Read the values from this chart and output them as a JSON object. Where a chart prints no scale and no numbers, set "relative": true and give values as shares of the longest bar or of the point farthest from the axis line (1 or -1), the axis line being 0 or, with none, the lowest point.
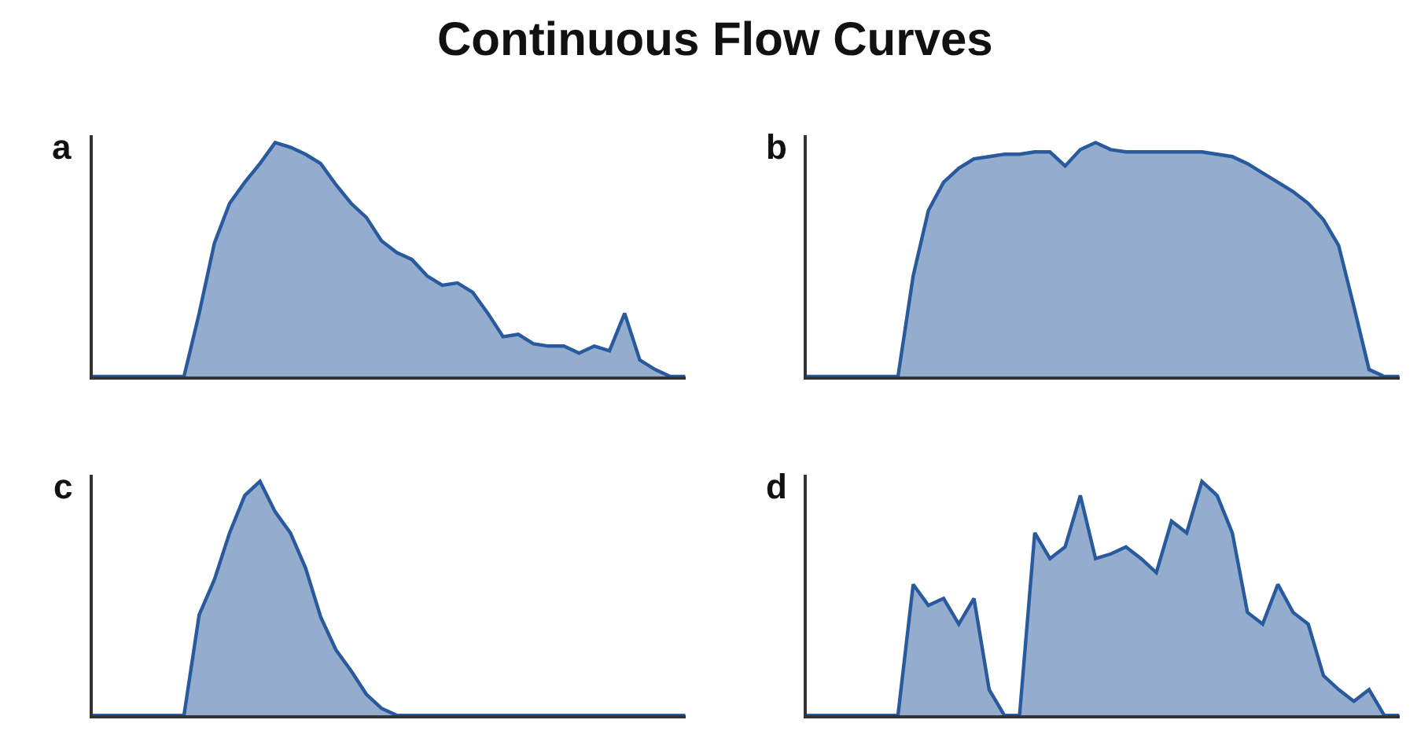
{
  "chart_data": [
    {
      "type": "other",
      "title": "Continuous Flow Curves"
    },
    {
      "type": "area",
      "title": "a",
      "relative": true,
      "categories": [
        null,
        null,
        null,
        null,
        null,
        null,
        null,
        null,
        null,
        null,
        null,
        null,
        null,
        null,
        null,
        null,
        null,
        null,
        null,
        null,
        null,
        null,
        null,
        null,
        null,
        null,
        null,
        null,
        null,
        null,
        null,
        null,
        null,
        null,
        null,
        null,
        null,
        null,
        null,
        null
      ],
      "series": [
        {
          "color": "#2a5a9e",
          "values": [
            0,
            0,
            0,
            0,
            0,
            0,
            0,
            0.27,
            0.57,
            0.74,
            0.83,
            0.91,
            1,
            0.98,
            0.95,
            0.91,
            0.82,
            0.74,
            0.68,
            0.58,
            0.53,
            0.5,
            0.43,
            0.39,
            0.4,
            0.36,
            0.27,
            0.17,
            0.18,
            0.14,
            0.13,
            0.13,
            0.1,
            0.13,
            0.11,
            0.27,
            0.07,
            0.03,
            0,
            0
          ]
        }
      ]
    },
    {
      "type": "area",
      "title": "b",
      "relative": true,
      "categories": [
        null,
        null,
        null,
        null,
        null,
        null,
        null,
        null,
        null,
        null,
        null,
        null,
        null,
        null,
        null,
        null,
        null,
        null,
        null,
        null,
        null,
        null,
        null,
        null,
        null,
        null,
        null,
        null,
        null,
        null,
        null,
        null,
        null,
        null,
        null,
        null,
        null,
        null,
        null,
        null
      ],
      "series": [
        {
          "color": "#2a5a9e",
          "values": [
            0,
            0,
            0,
            0,
            0,
            0,
            0,
            0.43,
            0.71,
            0.83,
            0.89,
            0.93,
            0.94,
            0.95,
            0.95,
            0.96,
            0.96,
            0.9,
            0.97,
            1,
            0.97,
            0.96,
            0.96,
            0.96,
            0.96,
            0.96,
            0.96,
            0.95,
            0.94,
            0.91,
            0.87,
            0.83,
            0.79,
            0.74,
            0.67,
            0.56,
            0.3,
            0.03,
            0,
            0
          ]
        }
      ]
    },
    {
      "type": "area",
      "title": "c",
      "relative": true,
      "categories": [
        null,
        null,
        null,
        null,
        null,
        null,
        null,
        null,
        null,
        null,
        null,
        null,
        null,
        null,
        null,
        null,
        null,
        null,
        null,
        null,
        null,
        null,
        null,
        null,
        null,
        null,
        null,
        null,
        null,
        null,
        null,
        null,
        null,
        null,
        null,
        null,
        null,
        null,
        null,
        null
      ],
      "series": [
        {
          "color": "#2a5a9e",
          "values": [
            0,
            0,
            0,
            0,
            0,
            0,
            0,
            0.43,
            0.58,
            0.78,
            0.94,
            1,
            0.87,
            0.78,
            0.63,
            0.42,
            0.28,
            0.19,
            0.09,
            0.03,
            0,
            0,
            0,
            0,
            0,
            0,
            0,
            0,
            0,
            0,
            0,
            0,
            0,
            0,
            0,
            0,
            0,
            0,
            0,
            0
          ]
        }
      ]
    },
    {
      "type": "area",
      "title": "d",
      "relative": true,
      "categories": [
        null,
        null,
        null,
        null,
        null,
        null,
        null,
        null,
        null,
        null,
        null,
        null,
        null,
        null,
        null,
        null,
        null,
        null,
        null,
        null,
        null,
        null,
        null,
        null,
        null,
        null,
        null,
        null,
        null,
        null,
        null,
        null,
        null,
        null,
        null,
        null,
        null,
        null,
        null,
        null
      ],
      "series": [
        {
          "color": "#2a5a9e",
          "values": [
            0,
            0,
            0,
            0,
            0,
            0,
            0,
            0.56,
            0.47,
            0.5,
            0.39,
            0.5,
            0.11,
            0,
            0,
            0.78,
            0.67,
            0.72,
            0.94,
            0.67,
            0.69,
            0.72,
            0.67,
            0.61,
            0.83,
            0.78,
            1,
            0.94,
            0.78,
            0.44,
            0.39,
            0.56,
            0.44,
            0.39,
            0.17,
            0.11,
            0.06,
            0.11,
            0,
            0
          ]
        }
      ]
    }
  ]
}
